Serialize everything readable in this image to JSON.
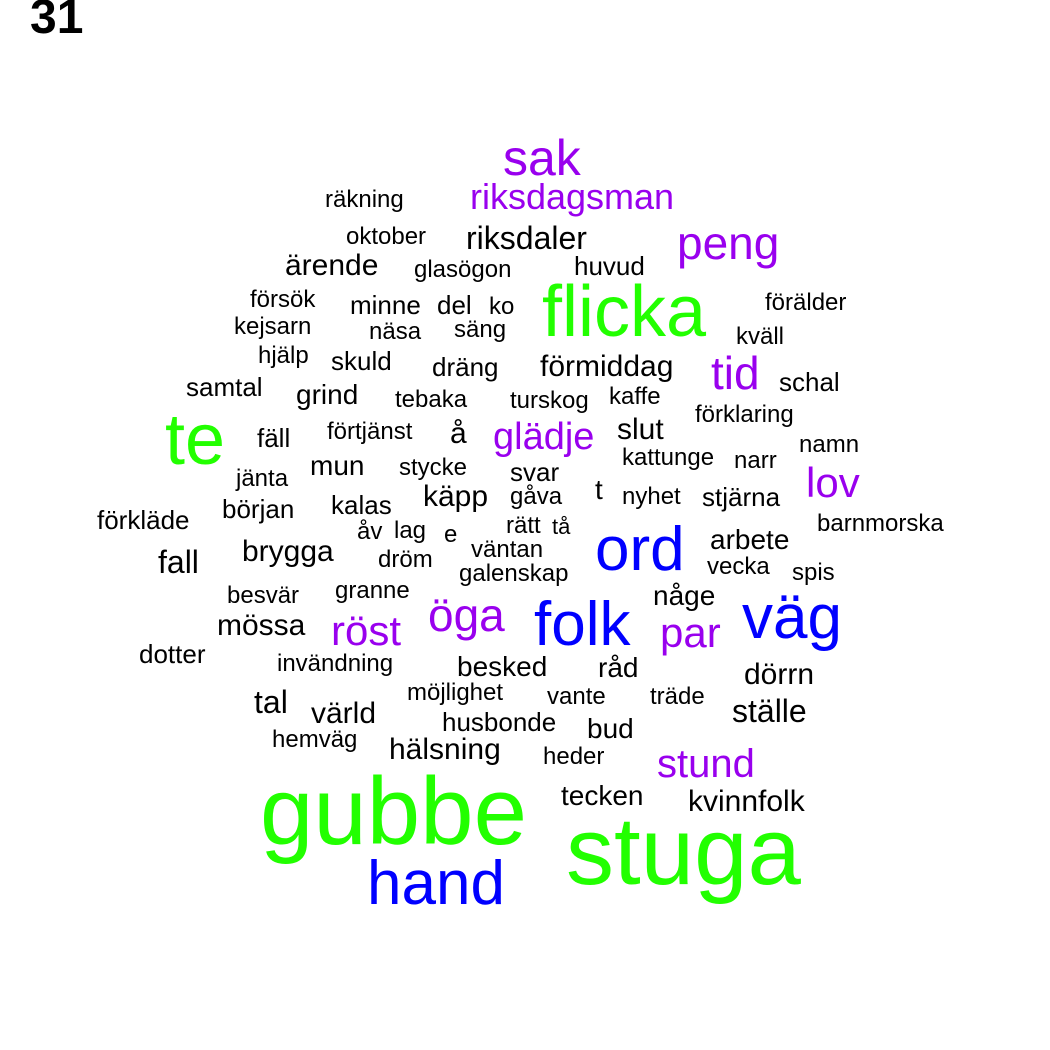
{
  "page_number": "31",
  "colors": {
    "tier1": "#22ff00",
    "tier2": "#0000ff",
    "tier3": "#9900ee",
    "tier4": "#000000"
  },
  "words": [
    {
      "text": "gubbe",
      "tier": "tier1"
    },
    {
      "text": "stuga",
      "tier": "tier1"
    },
    {
      "text": "flicka",
      "tier": "tier1"
    },
    {
      "text": "te",
      "tier": "tier1"
    },
    {
      "text": "hand",
      "tier": "tier2"
    },
    {
      "text": "folk",
      "tier": "tier2"
    },
    {
      "text": "ord",
      "tier": "tier2"
    },
    {
      "text": "väg",
      "tier": "tier2"
    },
    {
      "text": "sak",
      "tier": "tier3"
    },
    {
      "text": "riksdagsman",
      "tier": "tier3"
    },
    {
      "text": "peng",
      "tier": "tier3"
    },
    {
      "text": "tid",
      "tier": "tier3"
    },
    {
      "text": "glädje",
      "tier": "tier3"
    },
    {
      "text": "lov",
      "tier": "tier3"
    },
    {
      "text": "öga",
      "tier": "tier3"
    },
    {
      "text": "röst",
      "tier": "tier3"
    },
    {
      "text": "par",
      "tier": "tier3"
    },
    {
      "text": "stund",
      "tier": "tier3"
    },
    {
      "text": "räkning",
      "tier": "tier4"
    },
    {
      "text": "oktober",
      "tier": "tier4"
    },
    {
      "text": "riksdaler",
      "tier": "tier4"
    },
    {
      "text": "ärende",
      "tier": "tier4"
    },
    {
      "text": "glasögon",
      "tier": "tier4"
    },
    {
      "text": "huvud",
      "tier": "tier4"
    },
    {
      "text": "försök",
      "tier": "tier4"
    },
    {
      "text": "minne",
      "tier": "tier4"
    },
    {
      "text": "del",
      "tier": "tier4"
    },
    {
      "text": "ko",
      "tier": "tier4"
    },
    {
      "text": "förälder",
      "tier": "tier4"
    },
    {
      "text": "kejsarn",
      "tier": "tier4"
    },
    {
      "text": "näsa",
      "tier": "tier4"
    },
    {
      "text": "säng",
      "tier": "tier4"
    },
    {
      "text": "kväll",
      "tier": "tier4"
    },
    {
      "text": "hjälp",
      "tier": "tier4"
    },
    {
      "text": "skuld",
      "tier": "tier4"
    },
    {
      "text": "dräng",
      "tier": "tier4"
    },
    {
      "text": "förmiddag",
      "tier": "tier4"
    },
    {
      "text": "schal",
      "tier": "tier4"
    },
    {
      "text": "samtal",
      "tier": "tier4"
    },
    {
      "text": "grind",
      "tier": "tier4"
    },
    {
      "text": "tebaka",
      "tier": "tier4"
    },
    {
      "text": "turskog",
      "tier": "tier4"
    },
    {
      "text": "kaffe",
      "tier": "tier4"
    },
    {
      "text": "förklaring",
      "tier": "tier4"
    },
    {
      "text": "fäll",
      "tier": "tier4"
    },
    {
      "text": "förtjänst",
      "tier": "tier4"
    },
    {
      "text": "å",
      "tier": "tier4"
    },
    {
      "text": "slut",
      "tier": "tier4"
    },
    {
      "text": "namn",
      "tier": "tier4"
    },
    {
      "text": "jänta",
      "tier": "tier4"
    },
    {
      "text": "mun",
      "tier": "tier4"
    },
    {
      "text": "stycke",
      "tier": "tier4"
    },
    {
      "text": "svar",
      "tier": "tier4"
    },
    {
      "text": "kattunge",
      "tier": "tier4"
    },
    {
      "text": "narr",
      "tier": "tier4"
    },
    {
      "text": "förkläde",
      "tier": "tier4"
    },
    {
      "text": "början",
      "tier": "tier4"
    },
    {
      "text": "kalas",
      "tier": "tier4"
    },
    {
      "text": "käpp",
      "tier": "tier4"
    },
    {
      "text": "gåva",
      "tier": "tier4"
    },
    {
      "text": "t",
      "tier": "tier4"
    },
    {
      "text": "nyhet",
      "tier": "tier4"
    },
    {
      "text": "stjärna",
      "tier": "tier4"
    },
    {
      "text": "barnmorska",
      "tier": "tier4"
    },
    {
      "text": "åv",
      "tier": "tier4"
    },
    {
      "text": "lag",
      "tier": "tier4"
    },
    {
      "text": "e",
      "tier": "tier4"
    },
    {
      "text": "rätt",
      "tier": "tier4"
    },
    {
      "text": "tå",
      "tier": "tier4"
    },
    {
      "text": "fall",
      "tier": "tier4"
    },
    {
      "text": "brygga",
      "tier": "tier4"
    },
    {
      "text": "dröm",
      "tier": "tier4"
    },
    {
      "text": "väntan",
      "tier": "tier4"
    },
    {
      "text": "arbete",
      "tier": "tier4"
    },
    {
      "text": "galenskap",
      "tier": "tier4"
    },
    {
      "text": "vecka",
      "tier": "tier4"
    },
    {
      "text": "spis",
      "tier": "tier4"
    },
    {
      "text": "besvär",
      "tier": "tier4"
    },
    {
      "text": "granne",
      "tier": "tier4"
    },
    {
      "text": "någe",
      "tier": "tier4"
    },
    {
      "text": "mössa",
      "tier": "tier4"
    },
    {
      "text": "dotter",
      "tier": "tier4"
    },
    {
      "text": "invändning",
      "tier": "tier4"
    },
    {
      "text": "besked",
      "tier": "tier4"
    },
    {
      "text": "råd",
      "tier": "tier4"
    },
    {
      "text": "dörrn",
      "tier": "tier4"
    },
    {
      "text": "tal",
      "tier": "tier4"
    },
    {
      "text": "möjlighet",
      "tier": "tier4"
    },
    {
      "text": "vante",
      "tier": "tier4"
    },
    {
      "text": "träde",
      "tier": "tier4"
    },
    {
      "text": "värld",
      "tier": "tier4"
    },
    {
      "text": "ställe",
      "tier": "tier4"
    },
    {
      "text": "husbonde",
      "tier": "tier4"
    },
    {
      "text": "bud",
      "tier": "tier4"
    },
    {
      "text": "hemväg",
      "tier": "tier4"
    },
    {
      "text": "hälsning",
      "tier": "tier4"
    },
    {
      "text": "heder",
      "tier": "tier4"
    },
    {
      "text": "tecken",
      "tier": "tier4"
    },
    {
      "text": "kvinnfolk",
      "tier": "tier4"
    }
  ]
}
